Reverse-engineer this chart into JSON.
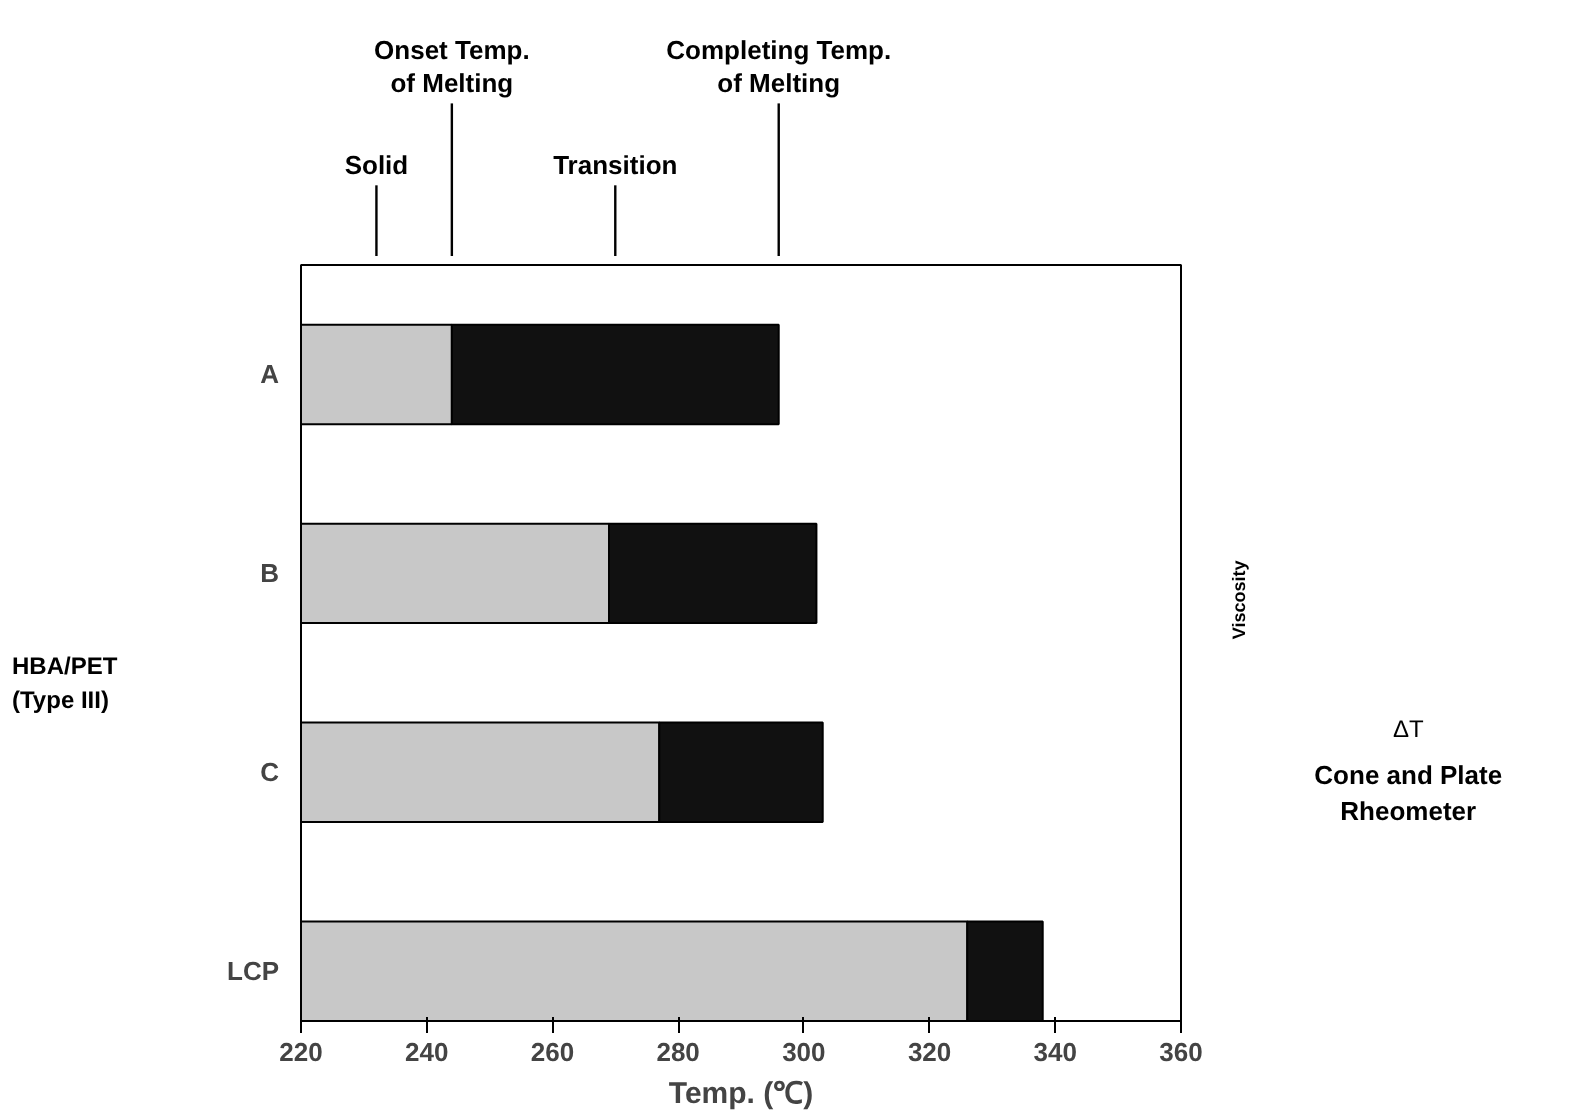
{
  "chart_data": [
    {
      "type": "bar",
      "orientation": "horizontal",
      "categories": [
        "A",
        "B",
        "C",
        "LCP"
      ],
      "series": [
        {
          "color": "#c8c8c8",
          "base": [
            220,
            220,
            220,
            220
          ],
          "values": [
            24,
            49,
            57,
            106
          ]
        },
        {
          "color": "#111111",
          "base": [
            244,
            269,
            277,
            326
          ],
          "values": [
            52,
            33,
            26,
            12
          ]
        }
      ],
      "xlim": [
        220,
        360
      ],
      "xticks": [
        220,
        240,
        260,
        280,
        300,
        320,
        340,
        360
      ],
      "xlabel": "Temp. (℃)",
      "grid": false,
      "annotations": [
        "Solid",
        {
          "text": "Onset Temp.\nof Melting",
          "x": 244
        },
        "Transition",
        {
          "text": "Completing Temp.\nof Melting",
          "x": 296
        },
        "HBA/PET\n(Type III)"
      ]
    },
    {
      "type": "other",
      "ylabel": "Viscosity",
      "xlabel": "ΔT",
      "title": "Cone and Plate\nRheometer"
    }
  ]
}
